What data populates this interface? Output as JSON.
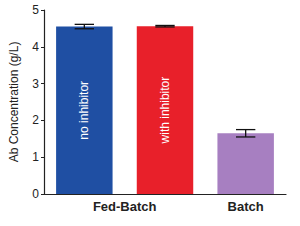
{
  "chart_data": {
    "type": "bar",
    "y_label": "Ab Concentration (g/L)",
    "categories": [
      "no inhibitor",
      "with inhibitor",
      null
    ],
    "groups": [
      "Fed-Batch",
      "Fed-Batch",
      "Batch"
    ],
    "values": [
      4.55,
      4.56,
      1.65
    ],
    "errors": [
      0.06,
      0.02,
      0.1
    ],
    "colors": [
      "#1f4fa3",
      "#e8202a",
      "#a77fc1"
    ],
    "ylim": [
      0,
      5
    ],
    "yticks": [
      0,
      1,
      2,
      3,
      4,
      5
    ],
    "grid": false
  }
}
